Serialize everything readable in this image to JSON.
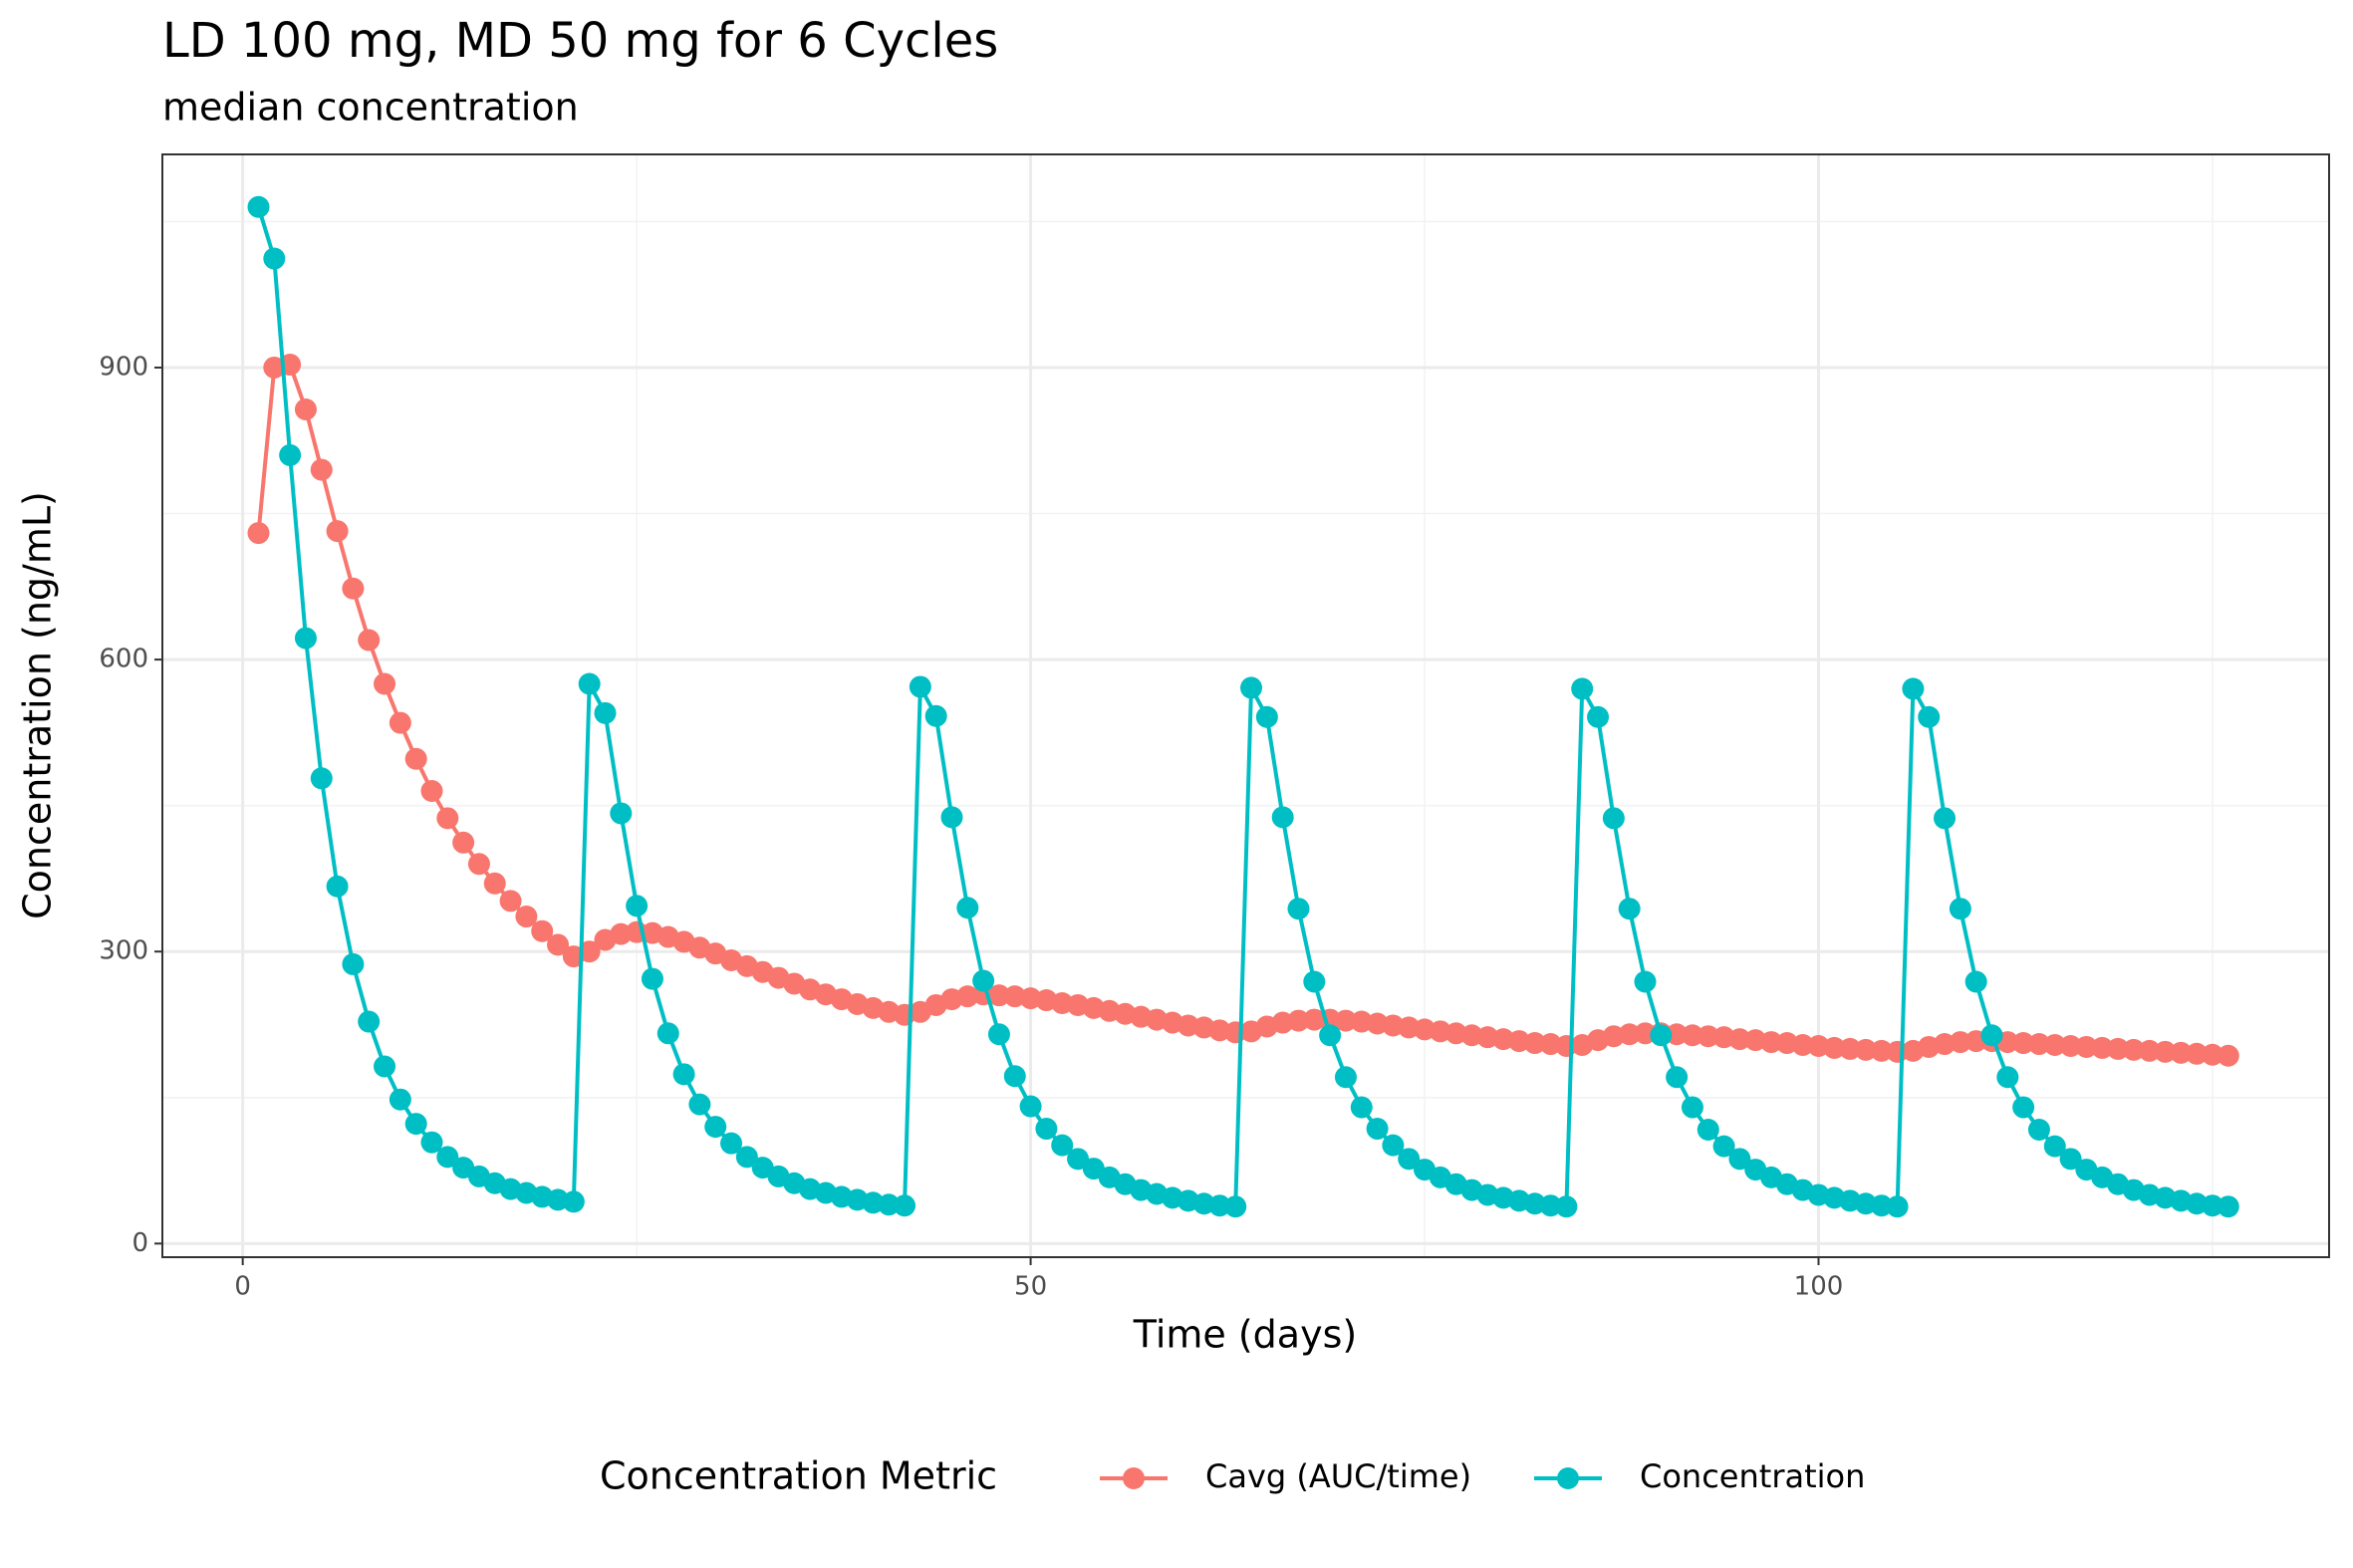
{
  "chart_data": {
    "type": "line",
    "title": "LD 100 mg, MD 50 mg for 6 Cycles",
    "subtitle": "median concentration",
    "x_label": "Time (days)",
    "y_label": "Concentration (ng/mL)",
    "legend_title": "Concentration Metric",
    "legend": "bottom",
    "grid": true,
    "xlim": [
      -5.1,
      132.4
    ],
    "ylim": [
      -14,
      1119
    ],
    "xticks": [
      0,
      50,
      100
    ],
    "yticks": [
      0,
      300,
      600,
      900
    ],
    "x": [
      1,
      2,
      3,
      4,
      5,
      6,
      7,
      8,
      9,
      10,
      11,
      12,
      13,
      14,
      15,
      16,
      17,
      18,
      19,
      20,
      21,
      22,
      23,
      24,
      25,
      26,
      27,
      28,
      29,
      30,
      31,
      32,
      33,
      34,
      35,
      36,
      37,
      38,
      39,
      40,
      41,
      42,
      43,
      44,
      45,
      46,
      47,
      48,
      49,
      50,
      51,
      52,
      53,
      54,
      55,
      56,
      57,
      58,
      59,
      60,
      61,
      62,
      63,
      64,
      65,
      66,
      67,
      68,
      69,
      70,
      71,
      72,
      73,
      74,
      75,
      76,
      77,
      78,
      79,
      80,
      81,
      82,
      83,
      84,
      85,
      86,
      87,
      88,
      89,
      90,
      91,
      92,
      93,
      94,
      95,
      96,
      97,
      98,
      99,
      100,
      101,
      102,
      103,
      104,
      105,
      106,
      107,
      108,
      109,
      110,
      111,
      112,
      113,
      114,
      115,
      116,
      117,
      118,
      119,
      120,
      121,
      122,
      123,
      124,
      125,
      126
    ],
    "series": [
      {
        "name": "Cavg (AUC/time)",
        "color": "#F8766D",
        "values": [
          730,
          900,
          903,
          857,
          795,
          732,
          673,
          620,
          575,
          535,
          498,
          465,
          437,
          412,
          390,
          370,
          352,
          336,
          321,
          307,
          295,
          300,
          312,
          318,
          320,
          319,
          315,
          310,
          304,
          298,
          291,
          285,
          279,
          273,
          267,
          261,
          256,
          251,
          246,
          242,
          238,
          235,
          238,
          245,
          251,
          254,
          256,
          255,
          254,
          252,
          250,
          247,
          245,
          242,
          239,
          236,
          233,
          230,
          227,
          224,
          222,
          219,
          217,
          218,
          223,
          227,
          229,
          230,
          230,
          229,
          228,
          226,
          224,
          222,
          220,
          218,
          216,
          214,
          212,
          210,
          208,
          206,
          205,
          203,
          204,
          209,
          213,
          215,
          216,
          216,
          215,
          214,
          213,
          212,
          210,
          209,
          207,
          206,
          204,
          203,
          201,
          200,
          199,
          198,
          197,
          198,
          202,
          205,
          207,
          208,
          208,
          207,
          206,
          205,
          204,
          203,
          202,
          201,
          200,
          199,
          198,
          197,
          196,
          195,
          194,
          193
        ]
      },
      {
        "name": "Concentration",
        "color": "#00BFC4",
        "values": [
          1065,
          1012,
          810,
          622,
          478,
          367,
          287,
          228,
          182,
          148,
          123,
          104,
          89,
          78,
          69,
          62,
          56,
          52,
          48,
          45,
          43,
          575,
          545,
          442,
          347,
          272,
          216,
          174,
          143,
          120,
          103,
          89,
          78,
          69,
          62,
          56,
          52,
          48,
          45,
          42,
          40,
          39,
          572,
          542,
          438,
          345,
          270,
          215,
          172,
          141,
          118,
          101,
          87,
          77,
          68,
          61,
          55,
          51,
          47,
          44,
          41,
          39,
          38,
          571,
          541,
          438,
          344,
          269,
          214,
          171,
          140,
          118,
          101,
          87,
          76,
          68,
          61,
          55,
          50,
          47,
          44,
          41,
          39,
          38,
          570,
          541,
          437,
          344,
          269,
          214,
          171,
          140,
          117,
          100,
          87,
          76,
          68,
          61,
          55,
          50,
          47,
          44,
          41,
          39,
          38,
          570,
          541,
          437,
          344,
          269,
          214,
          171,
          140,
          117,
          100,
          87,
          76,
          68,
          61,
          55,
          50,
          47,
          44,
          41,
          39,
          38
        ]
      }
    ]
  }
}
